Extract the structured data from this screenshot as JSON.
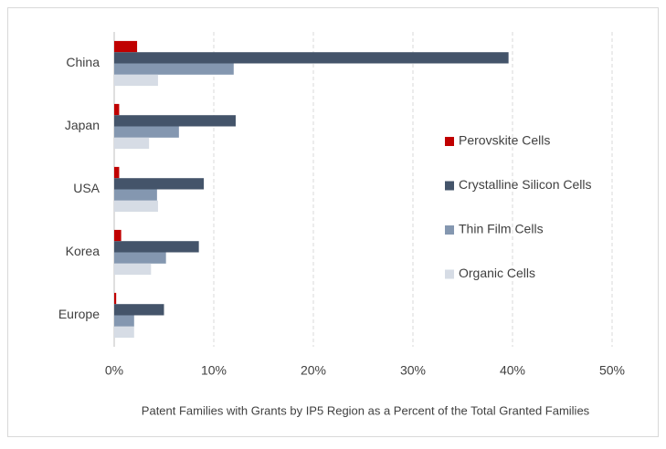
{
  "chart_data": {
    "type": "hbar",
    "x_label": "Patent Families with Grants by IP5 Region as a Percent of the Total Granted Families",
    "categories": [
      "China",
      "Japan",
      "USA",
      "Korea",
      "Europe"
    ],
    "series": [
      {
        "name": "Perovskite Cells",
        "color": "#c00000",
        "values": [
          2.3,
          0.5,
          0.5,
          0.7,
          0.2
        ]
      },
      {
        "name": "Crystalline Silicon Cells",
        "color": "#44546a",
        "values": [
          39.6,
          12.2,
          9.0,
          8.5,
          5.0
        ]
      },
      {
        "name": "Thin Film Cells",
        "color": "#8497b0",
        "values": [
          12.0,
          6.5,
          4.3,
          5.2,
          2.0
        ]
      },
      {
        "name": "Organic Cells",
        "color": "#d6dce5",
        "values": [
          4.4,
          3.5,
          4.4,
          3.7,
          2.0
        ]
      }
    ],
    "xlim": [
      0,
      50
    ],
    "xticks": [
      {
        "value": 0,
        "label": "0%"
      },
      {
        "value": 10,
        "label": "10%"
      },
      {
        "value": 20,
        "label": "20%"
      },
      {
        "value": 30,
        "label": "30%"
      },
      {
        "value": 40,
        "label": "40%"
      },
      {
        "value": 50,
        "label": "50%"
      }
    ],
    "grid": true
  }
}
